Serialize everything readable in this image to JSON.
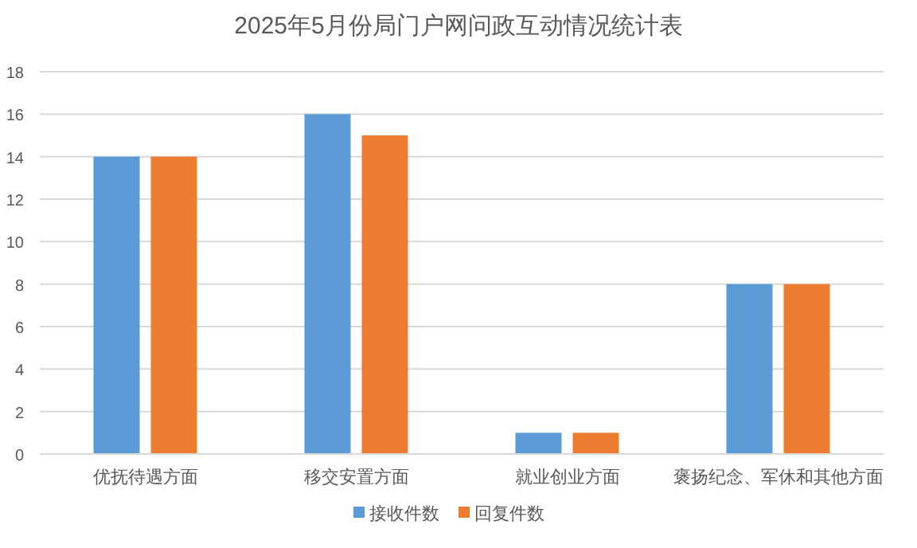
{
  "chart_data": {
    "type": "bar",
    "title": "2025年5月份局门户网问政互动情况统计表",
    "categories": [
      "优抚待遇方面",
      "移交安置方面",
      "就业创业方面",
      "褒扬纪念、军休和其他方面"
    ],
    "series": [
      {
        "name": "接收件数",
        "color": "#5b9bd5",
        "values": [
          14,
          16,
          1,
          8
        ]
      },
      {
        "name": "回复件数",
        "color": "#ed7d31",
        "values": [
          14,
          15,
          1,
          8
        ]
      }
    ],
    "ylim": [
      0,
      18
    ],
    "yticks": [
      0,
      2,
      4,
      6,
      8,
      10,
      12,
      14,
      16,
      18
    ],
    "grid": "y",
    "legend": "bottom"
  }
}
